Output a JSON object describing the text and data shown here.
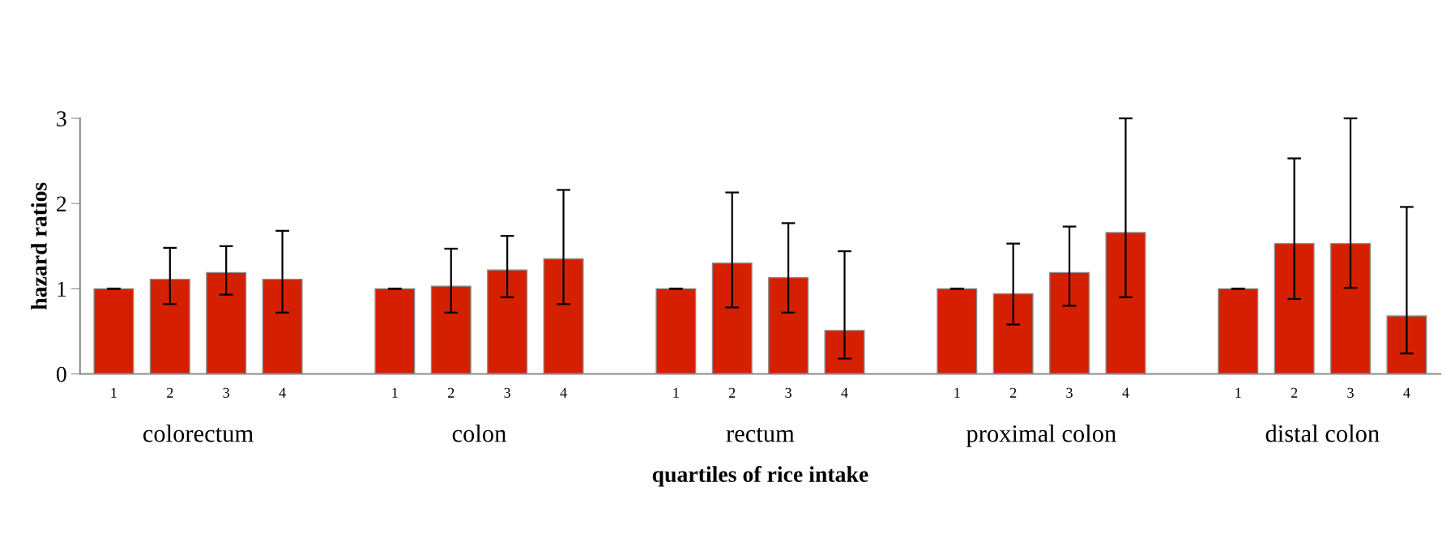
{
  "chart_data": {
    "type": "bar",
    "xlabel": "quartiles of rice intake",
    "ylabel": "hazard ratios",
    "categories": [
      "1",
      "2",
      "3",
      "4",
      null,
      "1",
      "2",
      "3",
      "4",
      null,
      "1",
      "2",
      "3",
      "4",
      null,
      "1",
      "2",
      "3",
      "4",
      null,
      "1",
      "2",
      "3",
      "4"
    ],
    "values": [
      1,
      1.11,
      1.19,
      1.11,
      null,
      1,
      1.03,
      1.22,
      1.35,
      null,
      1,
      1.3,
      1.13,
      0.51,
      null,
      1,
      0.94,
      1.19,
      1.66,
      null,
      1,
      1.53,
      1.53,
      0.68
    ],
    "errors": [
      [
        1,
        1
      ],
      [
        0.82,
        1.48
      ],
      [
        0.93,
        1.5
      ],
      [
        0.72,
        1.68
      ],
      null,
      [
        1,
        1
      ],
      [
        0.72,
        1.47
      ],
      [
        0.9,
        1.62
      ],
      [
        0.82,
        2.16
      ],
      null,
      [
        1,
        1
      ],
      [
        0.78,
        2.13
      ],
      [
        0.72,
        1.77
      ],
      [
        0.18,
        1.44
      ],
      null,
      [
        1,
        1
      ],
      [
        0.58,
        1.53
      ],
      [
        0.8,
        1.73
      ],
      [
        0.9,
        3
      ],
      null,
      [
        1,
        1
      ],
      [
        0.88,
        2.53
      ],
      [
        1.01,
        3
      ],
      [
        0.24,
        1.96
      ]
    ],
    "color": "#d42000",
    "ylim": [
      0,
      3
    ],
    "yticks": [
      0,
      1,
      2,
      3
    ],
    "grid": false,
    "annotations": [
      "colorectum",
      "colon",
      "rectum",
      "proximal colon",
      "distal colon"
    ]
  }
}
